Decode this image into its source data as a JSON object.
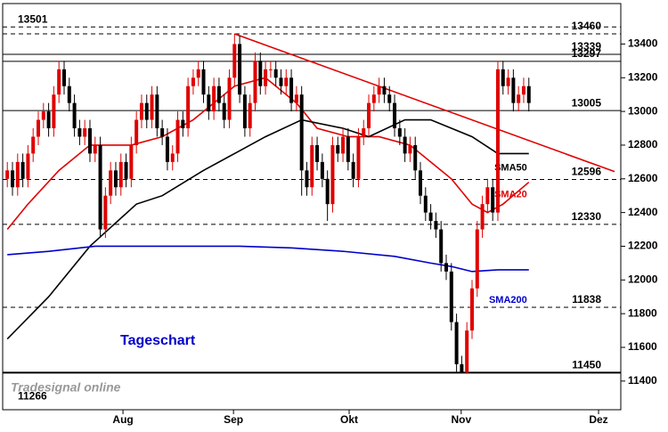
{
  "chart_data": {
    "type": "candlestick",
    "watermark": "Tradesignal online",
    "annotation": "Tageschart",
    "xlim": [
      -0.9,
      117.6
    ],
    "ylim": [
      11230,
      13640
    ],
    "xticks": [
      {
        "value": 22.4,
        "label": "Aug"
      },
      {
        "value": 43.8,
        "label": "Sep"
      },
      {
        "value": 66.2,
        "label": "Okt"
      },
      {
        "value": 87.9,
        "label": "Nov"
      },
      {
        "value": 114.5,
        "label": "Dez"
      }
    ],
    "yticks": [
      11400,
      11600,
      11800,
      12000,
      12200,
      12400,
      12600,
      12800,
      13000,
      13200,
      13400
    ],
    "up_color": "#e00000",
    "down_color": "#000000",
    "open": [
      12600,
      12650,
      12550,
      12700,
      12600,
      12750,
      12850,
      12950,
      13000,
      12900,
      13100,
      13250,
      13150,
      13050,
      12900,
      12850,
      12900,
      12750,
      12800,
      12300,
      12500,
      12650,
      12550,
      12700,
      12600,
      12800,
      12950,
      13050,
      12950,
      13100,
      12900,
      12850,
      12700,
      12750,
      12950,
      12900,
      13150,
      13200,
      13250,
      13100,
      13000,
      13150,
      13050,
      12950,
      13200,
      13400,
      13100,
      12900,
      13050,
      13300,
      13150,
      13250,
      13250,
      13200,
      13150,
      13200,
      13050,
      13100,
      12650,
      12550,
      12800,
      12700,
      12600,
      12450,
      12800,
      12750,
      12850,
      12700,
      12600,
      12850,
      12900,
      13050,
      13100,
      13150,
      13100,
      13050,
      12900,
      12850,
      12750,
      12800,
      12650,
      12500,
      12400,
      12350,
      12300,
      12100,
      12050,
      11750,
      11500,
      11450,
      11700,
      11950,
      12300,
      12450,
      12550,
      12400,
      13250,
      13150,
      13200,
      13050,
      13100,
      13150
    ],
    "high": [
      12700,
      12700,
      12750,
      12750,
      12800,
      12900,
      13000,
      13050,
      13050,
      13150,
      13300,
      13300,
      13200,
      13100,
      12950,
      12950,
      12950,
      12850,
      12850,
      12550,
      12700,
      12700,
      12750,
      12750,
      12850,
      13000,
      13100,
      13100,
      13150,
      13150,
      12950,
      12900,
      12800,
      13000,
      13000,
      13200,
      13250,
      13300,
      13300,
      13150,
      13200,
      13200,
      13100,
      13250,
      13460,
      13450,
      13150,
      13100,
      13350,
      13350,
      13300,
      13300,
      13300,
      13250,
      13250,
      13250,
      13150,
      13150,
      12700,
      12850,
      12850,
      12750,
      12650,
      12850,
      12850,
      12900,
      12900,
      12750,
      12900,
      12950,
      13100,
      13150,
      13200,
      13200,
      13150,
      13100,
      12950,
      12900,
      12850,
      12850,
      12700,
      12550,
      12450,
      12400,
      12350,
      12150,
      12100,
      11800,
      11550,
      11750,
      12000,
      12350,
      12500,
      12600,
      12600,
      13300,
      13300,
      13250,
      13250,
      13150,
      13200,
      13200
    ],
    "low": [
      12550,
      12500,
      12500,
      12550,
      12550,
      12700,
      12800,
      12900,
      12850,
      12850,
      13050,
      13100,
      13000,
      12850,
      12800,
      12800,
      12700,
      12700,
      12250,
      12250,
      12450,
      12500,
      12500,
      12550,
      12550,
      12750,
      12900,
      12900,
      12900,
      12850,
      12800,
      12650,
      12650,
      12700,
      12850,
      12850,
      13100,
      13150,
      13050,
      12950,
      12950,
      13000,
      12900,
      12900,
      13150,
      13050,
      12850,
      12850,
      13000,
      13100,
      13100,
      13200,
      13150,
      13100,
      13100,
      13000,
      13000,
      12500,
      12500,
      12500,
      12650,
      12550,
      12350,
      12400,
      12700,
      12700,
      12650,
      12550,
      12550,
      12800,
      12850,
      13000,
      13050,
      13050,
      13000,
      12850,
      12800,
      12700,
      12700,
      12600,
      12450,
      12350,
      12300,
      12250,
      12050,
      12000,
      11700,
      11450,
      11450,
      11450,
      11650,
      11900,
      12250,
      12400,
      12350,
      12350,
      13100,
      13100,
      13000,
      13000,
      13050,
      13000
    ],
    "close": [
      12650,
      12550,
      12700,
      12600,
      12750,
      12850,
      12950,
      13000,
      12900,
      13100,
      13250,
      13150,
      13050,
      12900,
      12850,
      12900,
      12750,
      12800,
      12300,
      12500,
      12650,
      12550,
      12700,
      12600,
      12800,
      12950,
      13050,
      12950,
      13100,
      12900,
      12850,
      12700,
      12750,
      12950,
      12900,
      13150,
      13200,
      13250,
      13100,
      13000,
      13150,
      13050,
      12950,
      13200,
      13400,
      13100,
      12900,
      13050,
      13300,
      13150,
      13250,
      13250,
      13200,
      13150,
      13200,
      13050,
      13100,
      12650,
      12550,
      12800,
      12700,
      12600,
      12450,
      12800,
      12750,
      12850,
      12700,
      12600,
      12850,
      12900,
      13050,
      13100,
      13150,
      13100,
      13050,
      12900,
      12850,
      12750,
      12800,
      12650,
      12500,
      12400,
      12350,
      12300,
      12100,
      12050,
      11750,
      11500,
      11450,
      11700,
      11950,
      12300,
      12450,
      12550,
      12400,
      13250,
      13150,
      13200,
      13050,
      13100,
      13150,
      13050
    ],
    "series": [
      {
        "name": "SMA20",
        "color": "#e00000",
        "x": [
          0,
          4,
          10,
          16,
          24,
          30,
          36,
          44,
          50,
          56,
          60,
          66,
          72,
          78,
          82,
          86,
          90,
          93,
          96,
          101
        ],
        "values": [
          12300,
          12450,
          12650,
          12800,
          12800,
          12850,
          12950,
          13150,
          13200,
          13050,
          12900,
          12850,
          12850,
          12800,
          12700,
          12600,
          12450,
          12400,
          12450,
          12580
        ]
      },
      {
        "name": "SMA50",
        "color": "#000000",
        "x": [
          0,
          8,
          16,
          25,
          30,
          38,
          44,
          50,
          57,
          65,
          70,
          77,
          82,
          86,
          90,
          95,
          101
        ],
        "values": [
          11650,
          11900,
          12200,
          12450,
          12500,
          12650,
          12750,
          12850,
          12950,
          12900,
          12850,
          12950,
          12950,
          12900,
          12850,
          12750,
          12750
        ]
      },
      {
        "name": "SMA200",
        "color": "#0000cc",
        "x": [
          0,
          8,
          17,
          30,
          45,
          55,
          65,
          75,
          82,
          86,
          90,
          95,
          101
        ],
        "values": [
          12150,
          12170,
          12200,
          12200,
          12200,
          12190,
          12170,
          12140,
          12100,
          12080,
          12050,
          12060,
          12060
        ]
      }
    ],
    "trendline": {
      "color": "#e00000",
      "x": [
        44,
        117.6
      ],
      "values": [
        13460,
        12643
      ]
    },
    "levels": [
      13501,
      13460,
      13339,
      13297,
      13005,
      12596,
      12330,
      11838,
      11450,
      11266
    ],
    "level_styles": [
      "dashed",
      "dashed",
      "solid",
      "solid",
      "solid",
      "dashed",
      "dashed",
      "dashed",
      "solid",
      "none"
    ],
    "level_label_side": [
      "left",
      "right",
      "right",
      "right",
      "right",
      "right",
      "right",
      "right",
      "right",
      "left"
    ]
  }
}
